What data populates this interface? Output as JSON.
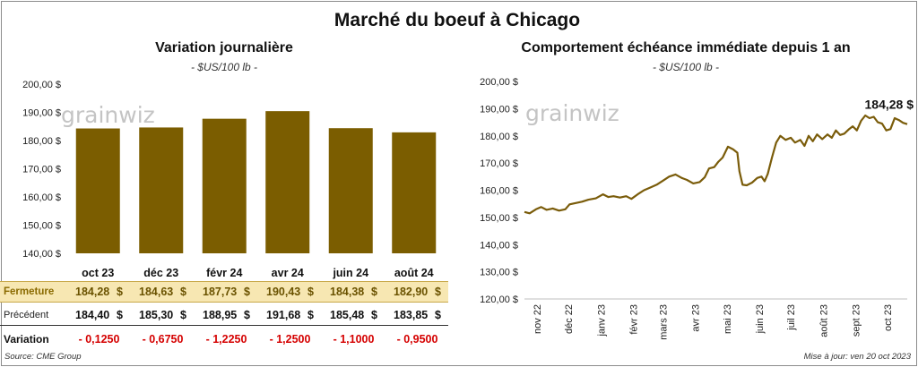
{
  "main_title": "Marché du boeuf à Chicago",
  "left": {
    "title": "Variation journalière",
    "unit": "- $US/100 lb -",
    "watermark": "grainwiz",
    "table": {
      "close_label": "Fermeture",
      "prev_label": "Précédent",
      "var_label": "Variation",
      "currency": "$",
      "close": [
        "184,28",
        "184,63",
        "187,73",
        "190,43",
        "184,38",
        "182,90"
      ],
      "prev": [
        "184,40",
        "185,30",
        "188,95",
        "191,68",
        "185,48",
        "183,85"
      ],
      "var": [
        "- 0,1250",
        "- 0,6750",
        "- 1,2250",
        "- 1,2500",
        "- 1,1000",
        "- 0,9500"
      ]
    }
  },
  "right": {
    "title": "Comportement  échéance immédiate depuis 1 an",
    "unit": "- $US/100 lb -",
    "watermark": "grainwiz",
    "end_label": "184,28 $"
  },
  "footer": {
    "source": "Source: CME Group",
    "updated": "Mise à jour: ven 20 oct 2023"
  },
  "colors": {
    "bar": "#7b5d00",
    "line": "#7a5c0a",
    "close_row_bg": "#f7e7b2",
    "variation_text": "#d50000"
  },
  "chart_data": [
    {
      "type": "bar",
      "title": "Variation journalière",
      "subtitle": "- $US/100 lb -",
      "categories": [
        "oct 23",
        "déc 23",
        "févr 24",
        "avr 24",
        "juin 24",
        "août 24"
      ],
      "values": [
        184.28,
        184.63,
        187.73,
        190.43,
        184.38,
        182.9
      ],
      "ylim": [
        140,
        200
      ],
      "yticks": [
        "140,00 $",
        "150,00 $",
        "160,00 $",
        "170,00 $",
        "180,00 $",
        "190,00 $",
        "200,00 $"
      ],
      "grid": false
    },
    {
      "type": "line",
      "title": "Comportement  échéance immédiate depuis 1 an",
      "subtitle": "- $US/100 lb -",
      "xlim": [
        "2022-10-20",
        "2023-10-20"
      ],
      "ylim": [
        120,
        200
      ],
      "yticks": [
        "120,00 $",
        "130,00 $",
        "140,00 $",
        "150,00 $",
        "160,00 $",
        "170,00 $",
        "180,00 $",
        "190,00 $",
        "200,00 $"
      ],
      "xticks": [
        {
          "date": "2022-11-01",
          "label": "nov 22"
        },
        {
          "date": "2022-12-01",
          "label": "déc 22"
        },
        {
          "date": "2023-01-01",
          "label": "janv 23"
        },
        {
          "date": "2023-02-01",
          "label": "févr 23"
        },
        {
          "date": "2023-03-01",
          "label": "mars 23"
        },
        {
          "date": "2023-04-01",
          "label": "avr 23"
        },
        {
          "date": "2023-05-01",
          "label": "mai 23"
        },
        {
          "date": "2023-06-01",
          "label": "juin 23"
        },
        {
          "date": "2023-07-01",
          "label": "juil 23"
        },
        {
          "date": "2023-08-01",
          "label": "août 23"
        },
        {
          "date": "2023-09-01",
          "label": "sept 23"
        },
        {
          "date": "2023-10-01",
          "label": "oct 23"
        }
      ],
      "points": [
        [
          "2022-10-20",
          152.0
        ],
        [
          "2022-10-25",
          151.5
        ],
        [
          "2022-10-31",
          153.0
        ],
        [
          "2022-11-05",
          153.8
        ],
        [
          "2022-11-10",
          152.8
        ],
        [
          "2022-11-16",
          153.3
        ],
        [
          "2022-11-22",
          152.5
        ],
        [
          "2022-11-28",
          153.0
        ],
        [
          "2022-12-02",
          154.8
        ],
        [
          "2022-12-08",
          155.3
        ],
        [
          "2022-12-14",
          155.8
        ],
        [
          "2022-12-20",
          156.5
        ],
        [
          "2022-12-27",
          157.0
        ],
        [
          "2023-01-03",
          158.5
        ],
        [
          "2023-01-08",
          157.5
        ],
        [
          "2023-01-13",
          157.8
        ],
        [
          "2023-01-19",
          157.3
        ],
        [
          "2023-01-25",
          157.8
        ],
        [
          "2023-01-30",
          156.8
        ],
        [
          "2023-02-05",
          158.5
        ],
        [
          "2023-02-11",
          160.0
        ],
        [
          "2023-02-17",
          161.0
        ],
        [
          "2023-02-23",
          162.0
        ],
        [
          "2023-03-01",
          163.5
        ],
        [
          "2023-03-07",
          165.0
        ],
        [
          "2023-03-13",
          165.8
        ],
        [
          "2023-03-19",
          164.5
        ],
        [
          "2023-03-24",
          163.8
        ],
        [
          "2023-03-30",
          162.5
        ],
        [
          "2023-04-05",
          163.0
        ],
        [
          "2023-04-10",
          164.8
        ],
        [
          "2023-04-14",
          168.0
        ],
        [
          "2023-04-19",
          168.5
        ],
        [
          "2023-04-23",
          170.5
        ],
        [
          "2023-04-27",
          172.0
        ],
        [
          "2023-05-02",
          176.0
        ],
        [
          "2023-05-07",
          175.0
        ],
        [
          "2023-05-11",
          173.8
        ],
        [
          "2023-05-13",
          167.0
        ],
        [
          "2023-05-16",
          162.0
        ],
        [
          "2023-05-20",
          161.8
        ],
        [
          "2023-05-25",
          162.8
        ],
        [
          "2023-05-30",
          164.5
        ],
        [
          "2023-06-03",
          165.0
        ],
        [
          "2023-06-06",
          163.3
        ],
        [
          "2023-06-09",
          166.0
        ],
        [
          "2023-06-13",
          172.0
        ],
        [
          "2023-06-17",
          177.5
        ],
        [
          "2023-06-21",
          180.0
        ],
        [
          "2023-06-26",
          178.5
        ],
        [
          "2023-07-01",
          179.3
        ],
        [
          "2023-07-05",
          177.5
        ],
        [
          "2023-07-10",
          178.5
        ],
        [
          "2023-07-14",
          176.3
        ],
        [
          "2023-07-18",
          180.0
        ],
        [
          "2023-07-22",
          178.0
        ],
        [
          "2023-07-26",
          180.5
        ],
        [
          "2023-07-31",
          178.8
        ],
        [
          "2023-08-05",
          180.5
        ],
        [
          "2023-08-09",
          179.3
        ],
        [
          "2023-08-13",
          182.0
        ],
        [
          "2023-08-17",
          180.3
        ],
        [
          "2023-08-21",
          180.8
        ],
        [
          "2023-08-25",
          182.3
        ],
        [
          "2023-08-29",
          183.5
        ],
        [
          "2023-09-02",
          182.0
        ],
        [
          "2023-09-06",
          185.5
        ],
        [
          "2023-09-10",
          187.5
        ],
        [
          "2023-09-14",
          186.5
        ],
        [
          "2023-09-18",
          187.0
        ],
        [
          "2023-09-22",
          185.0
        ],
        [
          "2023-09-26",
          184.5
        ],
        [
          "2023-09-30",
          182.0
        ],
        [
          "2023-10-04",
          182.5
        ],
        [
          "2023-10-08",
          186.5
        ],
        [
          "2023-10-12",
          185.8
        ],
        [
          "2023-10-16",
          184.8
        ],
        [
          "2023-10-20",
          184.28
        ]
      ],
      "annotation": "184,28 $",
      "grid": false
    }
  ]
}
